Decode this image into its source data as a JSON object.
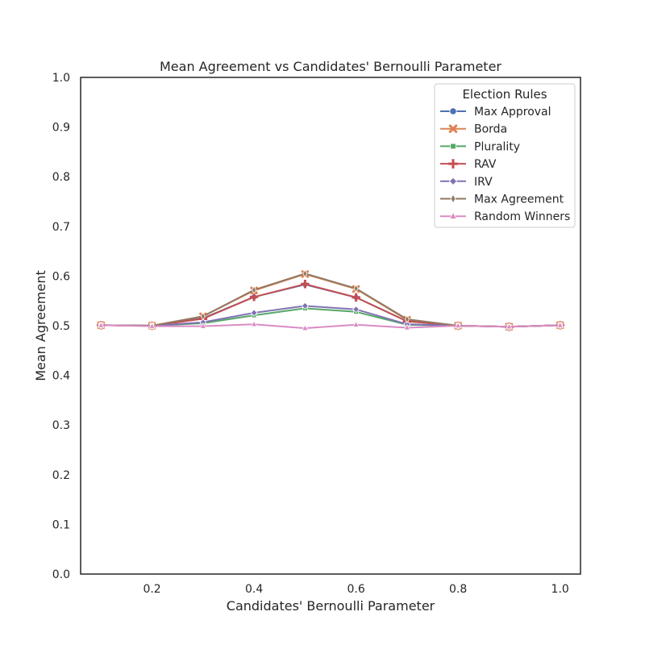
{
  "chart_data": {
    "type": "line",
    "title": "Mean Agreement vs Candidates' Bernoulli Parameter",
    "xlabel": "Candidates' Bernoulli Parameter",
    "ylabel": "Mean Agreement",
    "xlim": [
      0.06,
      1.04
    ],
    "ylim": [
      0.0,
      1.0
    ],
    "x_ticks": [
      0.2,
      0.4,
      0.6,
      0.8,
      1.0
    ],
    "x_tick_labels": [
      "0.2",
      "0.4",
      "0.6",
      "0.8",
      "1.0"
    ],
    "y_ticks": [
      0.0,
      0.1,
      0.2,
      0.3,
      0.4,
      0.5,
      0.6,
      0.7,
      0.8,
      0.9,
      1.0
    ],
    "y_tick_labels": [
      "0.0",
      "0.1",
      "0.2",
      "0.3",
      "0.4",
      "0.5",
      "0.6",
      "0.7",
      "0.8",
      "0.9",
      "1.0"
    ],
    "grid": false,
    "legend": {
      "title": "Election Rules",
      "position": "top-right"
    },
    "x": [
      0.1,
      0.2,
      0.3,
      0.4,
      0.5,
      0.6,
      0.7,
      0.8,
      0.9,
      1.0
    ],
    "series": [
      {
        "name": "Max Approval",
        "color": "#4c72b0",
        "marker": "circle",
        "values": [
          0.501,
          0.5,
          0.515,
          0.558,
          0.583,
          0.557,
          0.509,
          0.5,
          0.498,
          0.501
        ]
      },
      {
        "name": "Borda",
        "color": "#dd8452",
        "marker": "x",
        "values": [
          0.501,
          0.5,
          0.519,
          0.571,
          0.604,
          0.574,
          0.512,
          0.5,
          0.498,
          0.501
        ]
      },
      {
        "name": "Plurality",
        "color": "#55a868",
        "marker": "square",
        "values": [
          0.501,
          0.5,
          0.505,
          0.521,
          0.535,
          0.528,
          0.502,
          0.5,
          0.498,
          0.501
        ]
      },
      {
        "name": "RAV",
        "color": "#c44e52",
        "marker": "plus",
        "values": [
          0.501,
          0.5,
          0.514,
          0.558,
          0.584,
          0.557,
          0.509,
          0.5,
          0.498,
          0.501
        ]
      },
      {
        "name": "IRV",
        "color": "#8172b3",
        "marker": "diamond",
        "values": [
          0.501,
          0.5,
          0.507,
          0.526,
          0.54,
          0.533,
          0.503,
          0.5,
          0.498,
          0.501
        ]
      },
      {
        "name": "Max Agreement",
        "color": "#937860",
        "marker": "thin-diamond",
        "values": [
          0.501,
          0.5,
          0.519,
          0.572,
          0.605,
          0.575,
          0.513,
          0.5,
          0.498,
          0.501
        ]
      },
      {
        "name": "Random Winners",
        "color": "#da8bc3",
        "marker": "triangle",
        "values": [
          0.501,
          0.499,
          0.499,
          0.503,
          0.495,
          0.502,
          0.496,
          0.5,
          0.498,
          0.501
        ]
      }
    ]
  }
}
